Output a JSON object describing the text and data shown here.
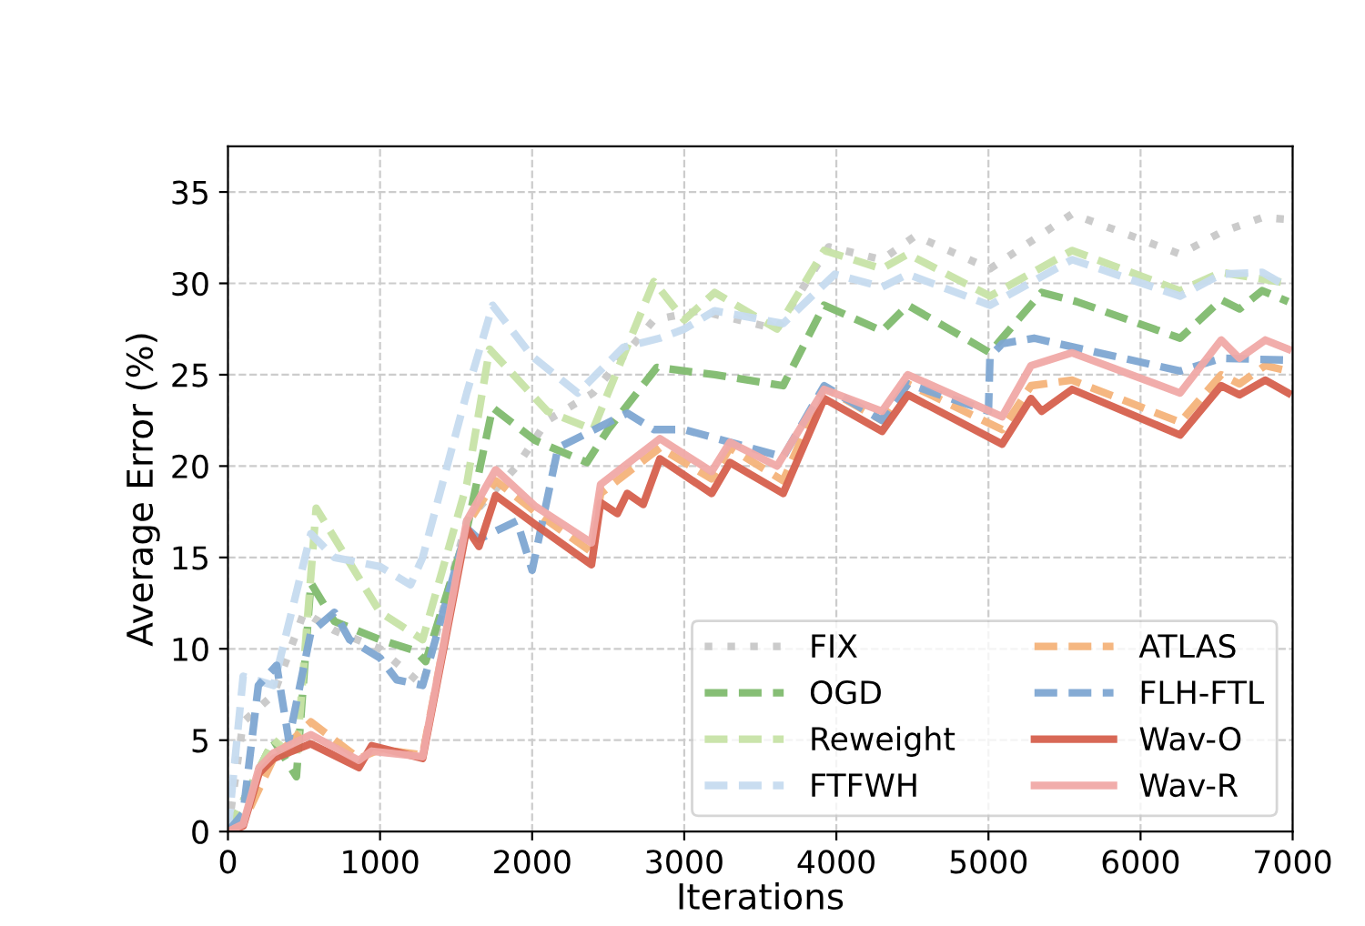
{
  "chart_data": {
    "type": "line",
    "xlabel": "Iterations",
    "ylabel": "Average Error (%)",
    "xlim": [
      0,
      7000
    ],
    "ylim": [
      0,
      37.5
    ],
    "xticks": [
      0,
      1000,
      2000,
      3000,
      4000,
      5000,
      6000,
      7000
    ],
    "yticks": [
      0,
      5,
      10,
      15,
      20,
      25,
      30,
      35
    ],
    "grid": true,
    "legend": "bottom right",
    "series": [
      {
        "name": "FIX",
        "color": "#c8c8c8",
        "line_style": "dotted",
        "x": [
          0,
          100,
          300,
          500,
          700,
          1000,
          1280,
          1570,
          1900,
          2100,
          2400,
          2800,
          3100,
          3610,
          3950,
          4300,
          4520,
          5010,
          5550,
          6260,
          6530,
          6800,
          6970
        ],
        "values": [
          0,
          6,
          7.5,
          12,
          11,
          10,
          8,
          17,
          20,
          22.5,
          24,
          28,
          28.5,
          27.5,
          32,
          31.3,
          32.6,
          30.8,
          33.8,
          31.6,
          32.8,
          33.6,
          33.5
        ]
      },
      {
        "name": "OGD",
        "color": "#7fba6e",
        "line_style": "dashed",
        "x": [
          0,
          300,
          450,
          545,
          700,
          1000,
          1230,
          1300,
          1570,
          1740,
          2020,
          2360,
          2500,
          2820,
          3200,
          3650,
          3920,
          4300,
          4470,
          5010,
          5090,
          5350,
          5580,
          6260,
          6530,
          6650,
          6800,
          6970
        ],
        "values": [
          0,
          5,
          3,
          13.6,
          11.5,
          10.5,
          9.9,
          9.3,
          16.5,
          23.2,
          21.4,
          20.2,
          22,
          25.4,
          25,
          24.4,
          28.8,
          27.4,
          28.8,
          26.2,
          27,
          29.5,
          29,
          27,
          29.1,
          28.6,
          29.6,
          29
        ]
      },
      {
        "name": "Reweight",
        "color": "#c7e3a6",
        "line_style": "dashed",
        "x": [
          0,
          300,
          450,
          580,
          1000,
          1280,
          1570,
          1720,
          2100,
          2400,
          2800,
          3000,
          3200,
          3610,
          3920,
          4300,
          4470,
          5010,
          5550,
          6260,
          6530,
          6970
        ],
        "values": [
          0,
          5,
          4,
          17.7,
          12,
          10.5,
          19,
          26.4,
          23,
          22,
          30.1,
          28,
          29.5,
          27.5,
          31.8,
          30.8,
          31.6,
          29.3,
          31.8,
          29.6,
          30.6,
          30
        ]
      },
      {
        "name": "FTFWH",
        "color": "#c6dbef",
        "line_style": "dashed",
        "x": [
          0,
          100,
          300,
          545,
          700,
          1000,
          1200,
          1280,
          1570,
          1740,
          2000,
          2300,
          2600,
          2840,
          3000,
          3200,
          3650,
          3990,
          4300,
          4470,
          5010,
          5550,
          6260,
          6530,
          6800,
          6970
        ],
        "values": [
          0,
          8.5,
          8,
          16.3,
          15,
          14.5,
          13.5,
          15,
          24,
          28.8,
          26,
          24,
          26.5,
          27,
          27.5,
          28.5,
          27.8,
          30.5,
          29.8,
          30.5,
          28.8,
          31.3,
          29.3,
          30.5,
          30.6,
          29.8
        ]
      },
      {
        "name": "ATLAS",
        "color": "#f4b37a",
        "line_style": "dashed",
        "x": [
          0,
          100,
          300,
          545,
          860,
          1000,
          1280,
          1570,
          1760,
          2020,
          2390,
          2450,
          2840,
          3180,
          3300,
          3650,
          3920,
          4300,
          4470,
          5090,
          5280,
          5550,
          6260,
          6530,
          6650,
          6820,
          6970
        ],
        "values": [
          0,
          0.5,
          4,
          6,
          4,
          4.5,
          4.2,
          16.8,
          19.2,
          17.5,
          15.3,
          18.5,
          21,
          19.3,
          21,
          19.2,
          24.3,
          22.5,
          24.5,
          22,
          24.4,
          24.7,
          22.4,
          25,
          24.5,
          25.5,
          25.2
        ]
      },
      {
        "name": "FLH-FTL",
        "color": "#7ea6d2",
        "line_style": "dashed",
        "x": [
          0,
          100,
          200,
          320,
          400,
          545,
          700,
          800,
          1000,
          1110,
          1280,
          1570,
          1650,
          1900,
          2000,
          2170,
          2625,
          2800,
          3000,
          3650,
          3920,
          4300,
          4470,
          5000,
          5010,
          5090,
          5300,
          6260,
          6530,
          6970
        ],
        "values": [
          0,
          1,
          8,
          9.1,
          5,
          10.9,
          12,
          10.5,
          9.5,
          8.3,
          8,
          16.6,
          16,
          17,
          14.3,
          21,
          22.9,
          22,
          22,
          20.5,
          24.4,
          22.5,
          24.5,
          23,
          26,
          26.7,
          27,
          25.2,
          25.9,
          25.8
        ]
      },
      {
        "name": "Wav-O",
        "color": "#d6604d",
        "line_style": "solid",
        "x": [
          0,
          100,
          205,
          300,
          545,
          860,
          945,
          1280,
          1570,
          1650,
          1760,
          2020,
          2390,
          2450,
          2560,
          2625,
          2730,
          2840,
          3180,
          3300,
          3650,
          3920,
          4300,
          4470,
          5090,
          5280,
          5350,
          5550,
          6260,
          6530,
          6650,
          6820,
          6970
        ],
        "values": [
          0,
          0.3,
          3.2,
          4,
          4.8,
          3.5,
          4.7,
          4,
          16.6,
          15.6,
          18.4,
          16.8,
          14.6,
          18,
          17.4,
          18.5,
          17.9,
          20.4,
          18.5,
          20.2,
          18.5,
          23.7,
          21.9,
          23.9,
          21.2,
          23.7,
          23,
          24.2,
          21.7,
          24.4,
          23.9,
          24.7,
          24
        ]
      },
      {
        "name": "Wav-R",
        "color": "#f0a9a6",
        "line_style": "solid",
        "x": [
          0,
          100,
          205,
          300,
          545,
          860,
          945,
          1280,
          1570,
          1760,
          2020,
          2390,
          2450,
          2840,
          3180,
          3300,
          3610,
          3920,
          4300,
          4470,
          5090,
          5280,
          5550,
          6260,
          6530,
          6650,
          6820,
          6970
        ],
        "values": [
          0,
          0.4,
          3.5,
          4.3,
          5.3,
          3.9,
          4.4,
          4.1,
          17,
          19.8,
          17.8,
          15.8,
          19,
          21.5,
          19.7,
          21.3,
          20,
          24.2,
          23,
          25,
          22.7,
          25.5,
          26.2,
          24,
          26.9,
          25.9,
          26.9,
          26.4
        ]
      }
    ]
  }
}
